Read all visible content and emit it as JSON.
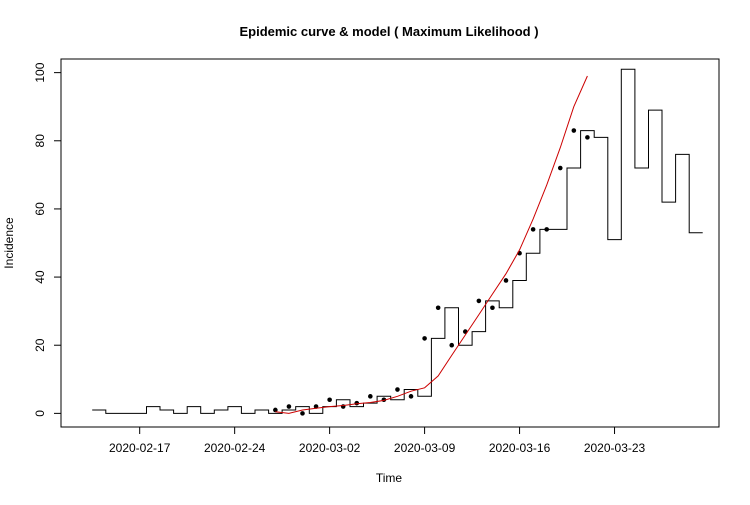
{
  "chart_data": {
    "type": "line",
    "title": "Epidemic curve & model ( Maximum Likelihood )",
    "xlabel": "Time",
    "ylabel": "Incidence",
    "x_tick_labels": [
      "2020-02-17",
      "2020-02-24",
      "2020-03-02",
      "2020-03-09",
      "2020-03-16",
      "2020-03-23"
    ],
    "y_ticks": [
      0,
      20,
      40,
      60,
      80,
      100
    ],
    "xlim": [
      "2020-02-12",
      "2020-03-30"
    ],
    "ylim": [
      -4,
      104
    ],
    "grid": false,
    "legend": "none",
    "series": [
      {
        "style": "step",
        "color": "#000000",
        "x": [
          "2020-02-14",
          "2020-02-15",
          "2020-02-16",
          "2020-02-17",
          "2020-02-18",
          "2020-02-19",
          "2020-02-20",
          "2020-02-21",
          "2020-02-22",
          "2020-02-23",
          "2020-02-24",
          "2020-02-25",
          "2020-02-26",
          "2020-02-27",
          "2020-02-28",
          "2020-02-29",
          "2020-03-01",
          "2020-03-02",
          "2020-03-03",
          "2020-03-04",
          "2020-03-05",
          "2020-03-06",
          "2020-03-07",
          "2020-03-08",
          "2020-03-09",
          "2020-03-10",
          "2020-03-11",
          "2020-03-12",
          "2020-03-13",
          "2020-03-14",
          "2020-03-15",
          "2020-03-16",
          "2020-03-17",
          "2020-03-18",
          "2020-03-19",
          "2020-03-20",
          "2020-03-21",
          "2020-03-22",
          "2020-03-23",
          "2020-03-24",
          "2020-03-25",
          "2020-03-26",
          "2020-03-27",
          "2020-03-28",
          "2020-03-29"
        ],
        "values": [
          1,
          0,
          0,
          0,
          2,
          1,
          0,
          2,
          0,
          1,
          2,
          0,
          1,
          0,
          1,
          2,
          0,
          2,
          4,
          2,
          3,
          5,
          4,
          7,
          5,
          22,
          31,
          20,
          24,
          33,
          31,
          39,
          47,
          54,
          54,
          72,
          83,
          81,
          51,
          101,
          72,
          89,
          62,
          76,
          53
        ]
      },
      {
        "style": "points",
        "color": "#000000",
        "x": [
          "2020-02-27",
          "2020-02-28",
          "2020-02-29",
          "2020-03-01",
          "2020-03-02",
          "2020-03-03",
          "2020-03-04",
          "2020-03-05",
          "2020-03-06",
          "2020-03-07",
          "2020-03-08",
          "2020-03-09",
          "2020-03-10",
          "2020-03-11",
          "2020-03-12",
          "2020-03-13",
          "2020-03-14",
          "2020-03-15",
          "2020-03-16",
          "2020-03-17",
          "2020-03-18",
          "2020-03-19",
          "2020-03-20",
          "2020-03-21"
        ],
        "values": [
          1,
          2,
          0,
          2,
          4,
          2,
          3,
          5,
          4,
          7,
          5,
          22,
          31,
          20,
          24,
          33,
          31,
          39,
          47,
          54,
          54,
          72,
          83,
          81
        ]
      },
      {
        "style": "line",
        "color": "#cc0000",
        "x": [
          "2020-02-27",
          "2020-02-28",
          "2020-02-29",
          "2020-03-01",
          "2020-03-02",
          "2020-03-03",
          "2020-03-04",
          "2020-03-05",
          "2020-03-06",
          "2020-03-07",
          "2020-03-08",
          "2020-03-09",
          "2020-03-10",
          "2020-03-11",
          "2020-03-12",
          "2020-03-13",
          "2020-03-14",
          "2020-03-15",
          "2020-03-16",
          "2020-03-17",
          "2020-03-18",
          "2020-03-19",
          "2020-03-20",
          "2020-03-21"
        ],
        "values": [
          0.5,
          0,
          1,
          1.5,
          2,
          2.3,
          2.8,
          3.2,
          3.8,
          5,
          6.5,
          7.5,
          11,
          17,
          23,
          29,
          35,
          41,
          48,
          57,
          67,
          78,
          90,
          99
        ]
      }
    ]
  }
}
